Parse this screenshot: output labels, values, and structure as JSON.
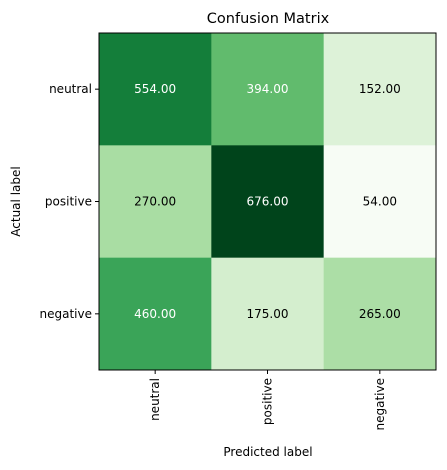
{
  "chart_data": {
    "type": "heatmap",
    "title": "Confusion Matrix",
    "xlabel": "Predicted label",
    "ylabel": "Actual label",
    "x_categories": [
      "neutral",
      "positive",
      "negative"
    ],
    "y_categories": [
      "neutral",
      "positive",
      "negative"
    ],
    "values": [
      [
        554,
        394,
        152
      ],
      [
        270,
        676,
        54
      ],
      [
        460,
        175,
        265
      ]
    ],
    "cell_labels": [
      [
        "554.00",
        "394.00",
        "152.00"
      ],
      [
        "270.00",
        "676.00",
        "54.00"
      ],
      [
        "460.00",
        "175.00",
        "265.00"
      ]
    ],
    "colormap": "Greens",
    "vmin": 54,
    "vmax": 676,
    "text_colors": {
      "light": "#ffffff",
      "dark": "#000000"
    }
  }
}
